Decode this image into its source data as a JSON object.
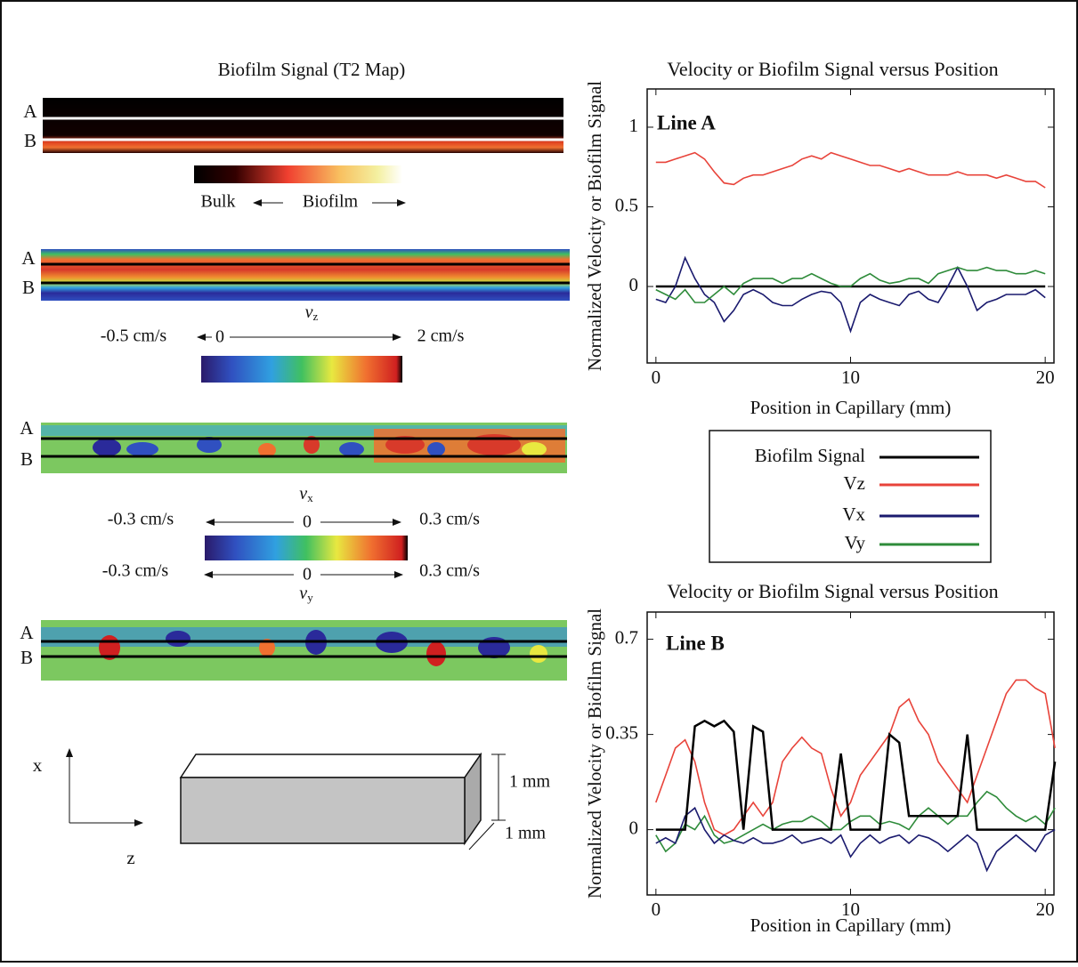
{
  "chart_data": [
    {
      "type": "line",
      "title": "Velocity or Biofilm Signal versus Position",
      "annotation": "Line A",
      "xlabel": "Position in Capillary (mm)",
      "ylabel": "Normalized Velocity or Biofilm Signal",
      "xlim": [
        -0.45,
        20.45
      ],
      "ylim": [
        -0.48,
        1.24
      ],
      "xticks": [
        0,
        10,
        20
      ],
      "yticks": [
        0,
        0.5,
        1
      ],
      "x": [
        0,
        0.5,
        1,
        1.5,
        2,
        2.5,
        3,
        3.5,
        4,
        4.5,
        5,
        5.5,
        6,
        6.5,
        7,
        7.5,
        8,
        8.5,
        9,
        9.5,
        10,
        10.5,
        11,
        11.5,
        12,
        12.5,
        13,
        13.5,
        14,
        14.5,
        15,
        15.5,
        16,
        16.5,
        17,
        17.5,
        18,
        18.5,
        19,
        19.5,
        20
      ],
      "series": [
        {
          "name": "Biofilm Signal",
          "color": "#000000",
          "values": [
            0,
            0,
            0,
            0,
            0,
            0,
            0,
            0,
            0,
            0,
            0,
            0,
            0,
            0,
            0,
            0,
            0,
            0,
            0,
            0,
            0,
            0,
            0,
            0,
            0,
            0,
            0,
            0,
            0,
            0,
            0,
            0,
            0,
            0,
            0,
            0,
            0,
            0,
            0,
            0,
            0
          ]
        },
        {
          "name": "Vz",
          "color": "#e8433a",
          "values": [
            0.78,
            0.78,
            0.8,
            0.82,
            0.84,
            0.8,
            0.72,
            0.65,
            0.64,
            0.68,
            0.7,
            0.7,
            0.72,
            0.74,
            0.76,
            0.8,
            0.82,
            0.8,
            0.84,
            0.82,
            0.8,
            0.78,
            0.76,
            0.76,
            0.74,
            0.72,
            0.74,
            0.72,
            0.7,
            0.7,
            0.7,
            0.72,
            0.7,
            0.7,
            0.7,
            0.68,
            0.7,
            0.68,
            0.66,
            0.66,
            0.62
          ]
        },
        {
          "name": "Vx",
          "color": "#1a1a6e",
          "values": [
            -0.08,
            -0.1,
            0.0,
            0.18,
            0.05,
            -0.05,
            -0.1,
            -0.22,
            -0.15,
            -0.05,
            -0.02,
            -0.05,
            -0.1,
            -0.12,
            -0.12,
            -0.08,
            -0.05,
            -0.03,
            -0.04,
            -0.1,
            -0.28,
            -0.1,
            -0.05,
            -0.08,
            -0.1,
            -0.12,
            -0.05,
            -0.03,
            -0.08,
            -0.1,
            0.0,
            0.12,
            0.0,
            -0.15,
            -0.1,
            -0.08,
            -0.05,
            -0.05,
            -0.05,
            -0.02,
            -0.07
          ]
        },
        {
          "name": "Vy",
          "color": "#2e8b3a",
          "values": [
            -0.02,
            -0.05,
            -0.08,
            -0.02,
            -0.1,
            -0.1,
            -0.05,
            0.0,
            -0.05,
            0.02,
            0.05,
            0.05,
            0.05,
            0.02,
            0.05,
            0.05,
            0.08,
            0.05,
            0.02,
            0.0,
            0.0,
            0.05,
            0.08,
            0.04,
            0.02,
            0.03,
            0.05,
            0.05,
            0.02,
            0.08,
            0.1,
            0.12,
            0.1,
            0.1,
            0.12,
            0.1,
            0.1,
            0.08,
            0.08,
            0.1,
            0.08
          ]
        }
      ]
    },
    {
      "type": "line",
      "title": "Velocity or Biofilm Signal versus Position",
      "annotation": "Line B",
      "xlabel": "Position in Capillary (mm)",
      "ylabel": "Normalized Velocity or Biofilm Signal",
      "xlim": [
        -0.45,
        20.45
      ],
      "ylim": [
        -0.24,
        0.8
      ],
      "xticks": [
        0,
        10,
        20
      ],
      "yticks": [
        0,
        0.35,
        0.7
      ],
      "x": [
        0,
        0.5,
        1,
        1.5,
        2,
        2.5,
        3,
        3.5,
        4,
        4.5,
        5,
        5.5,
        6,
        6.5,
        7,
        7.5,
        8,
        8.5,
        9,
        9.5,
        10,
        10.5,
        11,
        11.5,
        12,
        12.5,
        13,
        13.5,
        14,
        14.5,
        15,
        15.5,
        16,
        16.5,
        17,
        17.5,
        18,
        18.5,
        19,
        19.5,
        20,
        20.5
      ],
      "series": [
        {
          "color": "#e8433a",
          "values": [
            0.1,
            0.2,
            0.3,
            0.33,
            0.25,
            0.1,
            0.0,
            -0.02,
            0.0,
            0.05,
            0.1,
            0.05,
            0.1,
            0.25,
            0.3,
            0.34,
            0.3,
            0.28,
            0.15,
            0.05,
            0.1,
            0.2,
            0.25,
            0.3,
            0.35,
            0.45,
            0.48,
            0.4,
            0.35,
            0.25,
            0.2,
            0.15,
            0.1,
            0.2,
            0.3,
            0.4,
            0.5,
            0.55,
            0.55,
            0.52,
            0.5,
            0.3
          ]
        },
        {
          "color": "#2e8b3a",
          "values": [
            -0.02,
            -0.08,
            -0.05,
            0.02,
            0.0,
            0.05,
            -0.02,
            -0.05,
            -0.04,
            -0.02,
            0.0,
            0.02,
            0.0,
            0.02,
            0.03,
            0.03,
            0.05,
            0.03,
            0.0,
            0.0,
            0.03,
            0.05,
            0.05,
            0.02,
            0.03,
            0.02,
            0.0,
            0.05,
            0.08,
            0.05,
            0.02,
            0.05,
            0.05,
            0.1,
            0.14,
            0.12,
            0.08,
            0.05,
            0.03,
            0.05,
            0.02,
            0.08
          ]
        },
        {
          "color": "#1a1a6e",
          "values": [
            -0.05,
            -0.03,
            -0.05,
            0.05,
            0.08,
            0.0,
            -0.05,
            -0.02,
            -0.04,
            -0.05,
            -0.03,
            -0.05,
            -0.05,
            -0.04,
            -0.02,
            -0.05,
            -0.04,
            -0.03,
            -0.05,
            -0.02,
            -0.1,
            -0.05,
            -0.02,
            -0.05,
            -0.03,
            -0.02,
            -0.05,
            -0.02,
            -0.03,
            -0.05,
            -0.08,
            -0.05,
            -0.02,
            -0.05,
            -0.15,
            -0.08,
            -0.05,
            -0.02,
            -0.05,
            -0.08,
            -0.02,
            0.0
          ]
        },
        {
          "color": "#000000",
          "values": [
            0,
            0,
            0,
            0,
            0.38,
            0.4,
            0.38,
            0.4,
            0.36,
            0,
            0.38,
            0.36,
            0,
            0,
            0,
            0,
            0,
            0,
            0,
            0.28,
            0,
            0,
            0,
            0,
            0.35,
            0.32,
            0.05,
            0.05,
            0.05,
            0.05,
            0.05,
            0.05,
            0.35,
            0,
            0,
            0,
            0,
            0,
            0,
            0,
            0,
            0.25
          ]
        }
      ]
    }
  ],
  "maps": [
    {
      "row_a": "A",
      "row_b": "B"
    },
    {
      "row_a": "A",
      "row_b": "B"
    },
    {
      "row_a": "A",
      "row_b": "B"
    },
    {
      "row_a": "A",
      "row_b": "B"
    }
  ],
  "t2": {
    "title": "Biofilm Signal (T2 Map)",
    "low": "Bulk",
    "high": "Biofilm"
  },
  "vz": {
    "main": "v",
    "sub": "z",
    "min": "-0.5 cm/s",
    "zero": "0",
    "max": "2 cm/s"
  },
  "vx": {
    "main": "v",
    "sub": "x",
    "min": "-0.3 cm/s",
    "zero": "0",
    "max": "0.3 cm/s"
  },
  "vy": {
    "main": "v",
    "sub": "y",
    "min": "-0.3 cm/s",
    "zero": "0",
    "max": "0.3 cm/s"
  },
  "axes": {
    "x": "x",
    "z": "z"
  },
  "box": {
    "height": "1 mm",
    "depth": "1 mm"
  }
}
